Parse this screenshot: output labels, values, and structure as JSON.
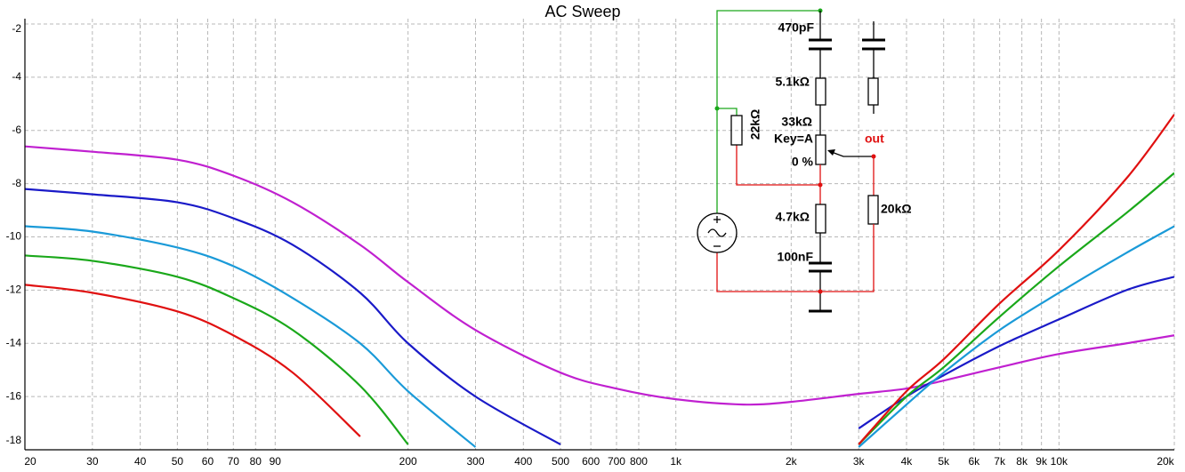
{
  "chart_data": {
    "type": "line",
    "title": "AC Sweep",
    "x": [
      20,
      30,
      50,
      70,
      100,
      150,
      200,
      300,
      500,
      700,
      1000,
      1500,
      2000,
      3000,
      4000,
      5000,
      7000,
      10000,
      15000,
      20000
    ],
    "log_x": true,
    "xlim": [
      20,
      20000
    ],
    "xticks": [
      20,
      30,
      40,
      50,
      60,
      70,
      80,
      90,
      200,
      300,
      400,
      500,
      600,
      700,
      800,
      {
        "value": 1000,
        "label": "1k"
      },
      {
        "value": 2000,
        "label": "2k"
      },
      {
        "value": 3000,
        "label": "3k"
      },
      {
        "value": 4000,
        "label": "4k"
      },
      {
        "value": 5000,
        "label": "5k"
      },
      {
        "value": 6000,
        "label": "6k"
      },
      {
        "value": 7000,
        "label": "7k"
      },
      {
        "value": 8000,
        "label": "8k"
      },
      {
        "value": 9000,
        "label": "9k"
      },
      {
        "value": 10000,
        "label": "10k"
      },
      {
        "value": 20000,
        "label": "20k"
      }
    ],
    "ylim": [
      -18,
      -1.8
    ],
    "yticks": [
      -2,
      -4,
      -6,
      -8,
      -10,
      -12,
      -14,
      -16,
      -18
    ],
    "grid": true,
    "series": [
      {
        "color": "#c020d0",
        "values": [
          -6.6,
          -6.8,
          -7.1,
          -7.7,
          -8.7,
          -10.3,
          -11.7,
          -13.5,
          -15.1,
          -15.7,
          -16.1,
          -16.3,
          -16.2,
          -15.9,
          -15.7,
          -15.4,
          -14.9,
          -14.4,
          -14.0,
          -13.7
        ]
      },
      {
        "color": "#1a1ac8",
        "values": [
          -8.2,
          -8.4,
          -8.7,
          -9.3,
          -10.3,
          -12.1,
          -14.0,
          -16.0,
          -17.8,
          null,
          null,
          null,
          null,
          -17.2,
          -16.0,
          -15.2,
          -14.1,
          -13.1,
          -12.0,
          -11.5
        ]
      },
      {
        "color": "#1a9ad8",
        "values": [
          -9.6,
          -9.8,
          -10.4,
          -11.1,
          -12.3,
          -14.0,
          -15.8,
          -17.9,
          null,
          null,
          null,
          null,
          null,
          -17.9,
          -16.3,
          -15.1,
          -13.5,
          -12.1,
          -10.6,
          -9.6
        ]
      },
      {
        "color": "#1aa81a",
        "values": [
          -10.7,
          -10.9,
          -11.5,
          -12.3,
          -13.5,
          -15.6,
          -17.8,
          null,
          null,
          null,
          null,
          null,
          null,
          -17.8,
          -16.0,
          -14.9,
          -13.0,
          -11.1,
          -9.1,
          -7.6
        ]
      },
      {
        "color": "#e01010",
        "values": [
          -11.8,
          -12.1,
          -12.8,
          -13.7,
          -15.1,
          -17.5,
          null,
          null,
          null,
          null,
          null,
          null,
          null,
          -17.8,
          -15.8,
          -14.6,
          -12.5,
          -10.5,
          -7.8,
          -5.4
        ]
      }
    ]
  },
  "circuit": {
    "labels": [
      "470pF",
      "5.1kΩ",
      "33kΩ",
      "Key=A",
      "0 %",
      "22kΩ",
      "out",
      "4.7kΩ",
      "20kΩ",
      "100nF"
    ]
  }
}
